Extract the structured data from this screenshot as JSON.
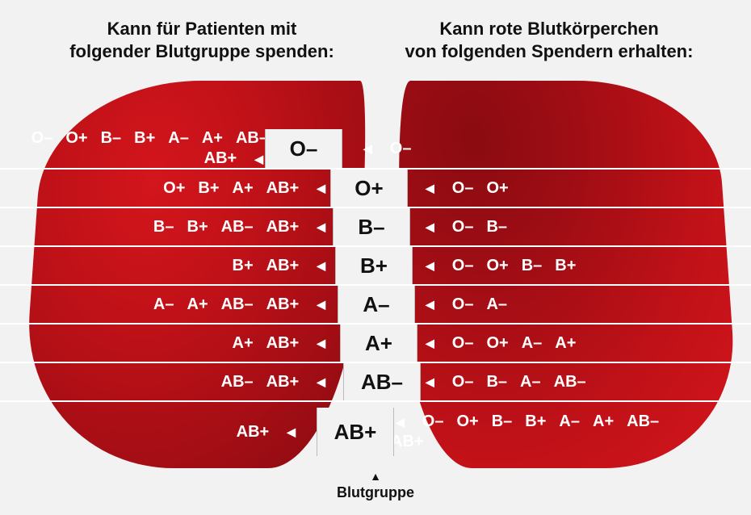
{
  "type": "infographic",
  "background_color": "#f2f2f2",
  "text_color": "#111111",
  "blob_gradient": [
    "#d4151c",
    "#c01118",
    "#a00d14",
    "#8a0b11"
  ],
  "row_divider_color": "#ffffff",
  "label_color": "#ffffff",
  "label_fontsize_pt": 15,
  "center_label_fontsize_pt": 20,
  "heading_fontsize_pt": 16,
  "heading_left": "Kann für Patienten mit\nfolgender Blutgruppe spenden:",
  "heading_right": "Kann rote Blutkörperchen\nvon folgenden Spendern erhalten:",
  "footer_arrow": "▲",
  "footer_label": "Blutgruppe",
  "arrow_glyph": "◀",
  "rows": [
    {
      "bloodtype": "O-",
      "donate_to": [
        "O-",
        "O+",
        "B-",
        "B+",
        "A-",
        "A+",
        "AB-",
        "AB+"
      ],
      "receive_from": [
        "O-"
      ]
    },
    {
      "bloodtype": "O+",
      "donate_to": [
        "O+",
        "B+",
        "A+",
        "AB+"
      ],
      "receive_from": [
        "O-",
        "O+"
      ]
    },
    {
      "bloodtype": "B-",
      "donate_to": [
        "B-",
        "B+",
        "AB-",
        "AB+"
      ],
      "receive_from": [
        "O-",
        "B-"
      ]
    },
    {
      "bloodtype": "B+",
      "donate_to": [
        "B+",
        "AB+"
      ],
      "receive_from": [
        "O-",
        "O+",
        "B-",
        "B+"
      ]
    },
    {
      "bloodtype": "A-",
      "donate_to": [
        "A-",
        "A+",
        "AB-",
        "AB+"
      ],
      "receive_from": [
        "O-",
        "A-"
      ]
    },
    {
      "bloodtype": "A+",
      "donate_to": [
        "A+",
        "AB+"
      ],
      "receive_from": [
        "O-",
        "O+",
        "A-",
        "A+"
      ]
    },
    {
      "bloodtype": "AB-",
      "donate_to": [
        "AB-",
        "AB+"
      ],
      "receive_from": [
        "O-",
        "B-",
        "A-",
        "AB-"
      ]
    },
    {
      "bloodtype": "AB+",
      "donate_to": [
        "AB+"
      ],
      "receive_from": [
        "O-",
        "O+",
        "B-",
        "B+",
        "A-",
        "A+",
        "AB-",
        "AB+"
      ]
    }
  ]
}
